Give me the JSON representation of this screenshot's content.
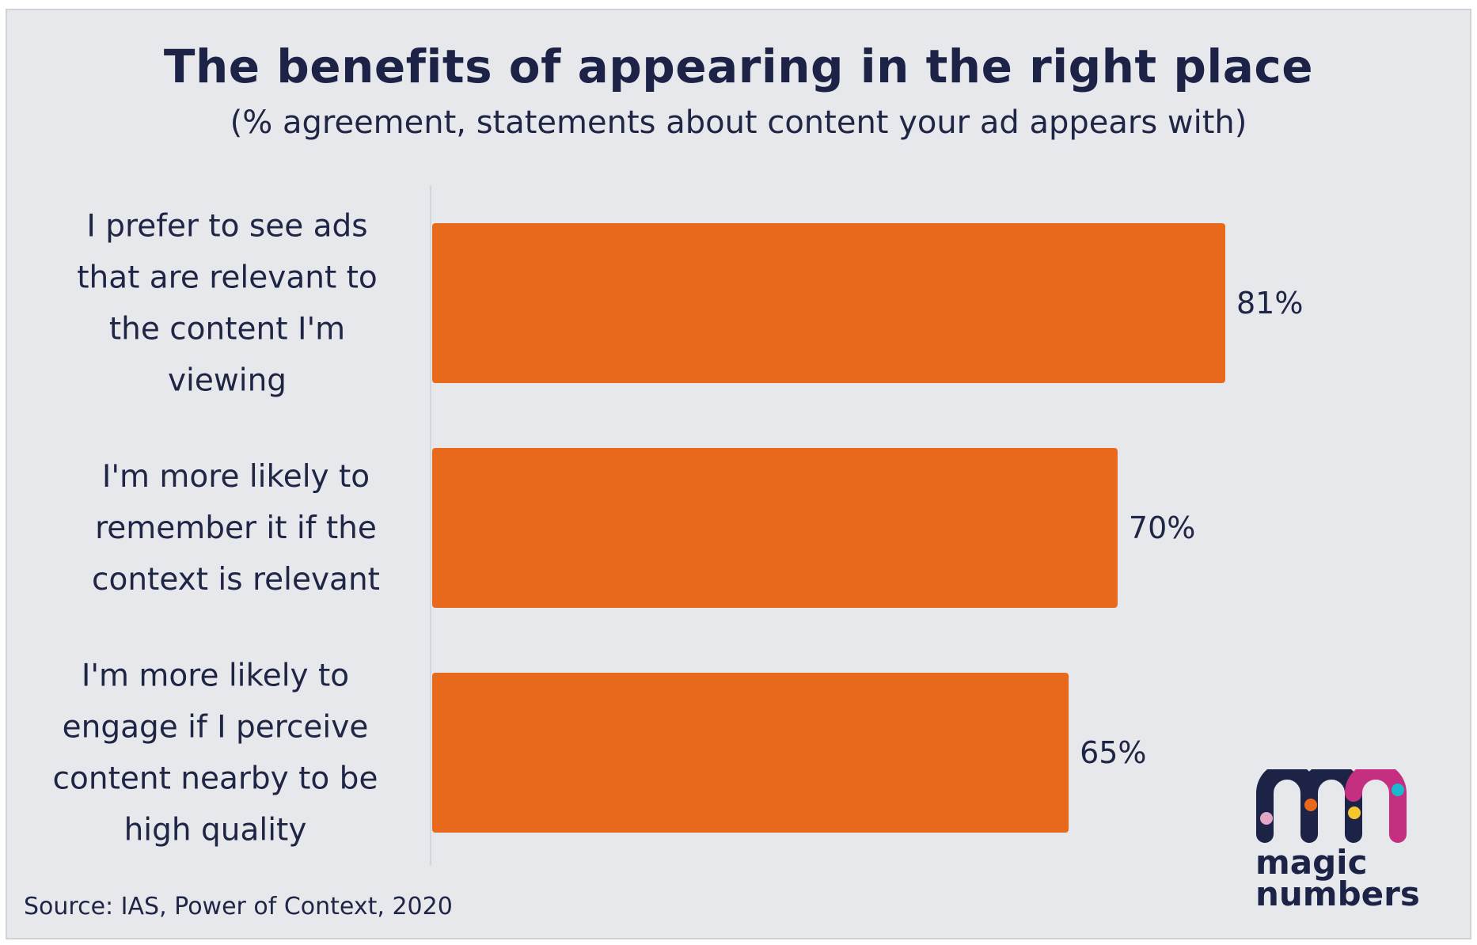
{
  "chart_data": {
    "type": "bar",
    "orientation": "horizontal",
    "title": "The benefits of appearing in the right place",
    "subtitle": "(% agreement, statements about content your ad appears with)",
    "xlabel": "",
    "ylabel": "",
    "xlim": [
      0,
      100
    ],
    "grid": false,
    "legend": "none",
    "categories": [
      [
        "I prefer to see ads",
        "that are relevant to",
        "the content I'm",
        "viewing"
      ],
      [
        "I'm more likely to",
        "remember it if the",
        "context is relevant"
      ],
      [
        "I'm more likely to",
        "engage if I perceive",
        "content nearby to be",
        "high quality"
      ]
    ],
    "values": [
      81,
      70,
      65
    ],
    "value_labels": [
      "81%",
      "70%",
      "65%"
    ],
    "bar_color": "#e8691b",
    "source": "Source: IAS, Power of Context, 2020"
  },
  "branding": {
    "logo_icon": "magic-numbers-mn-logo",
    "logo_line1": "magic",
    "logo_line2": "numbers",
    "colors": {
      "navy": "#1d2347",
      "magenta": "#c4307f",
      "pink_dot": "#e3a6c4",
      "orange_dot": "#e8691b",
      "yellow_dot": "#f5c72c",
      "cyan_dot": "#1bb8cf"
    }
  }
}
